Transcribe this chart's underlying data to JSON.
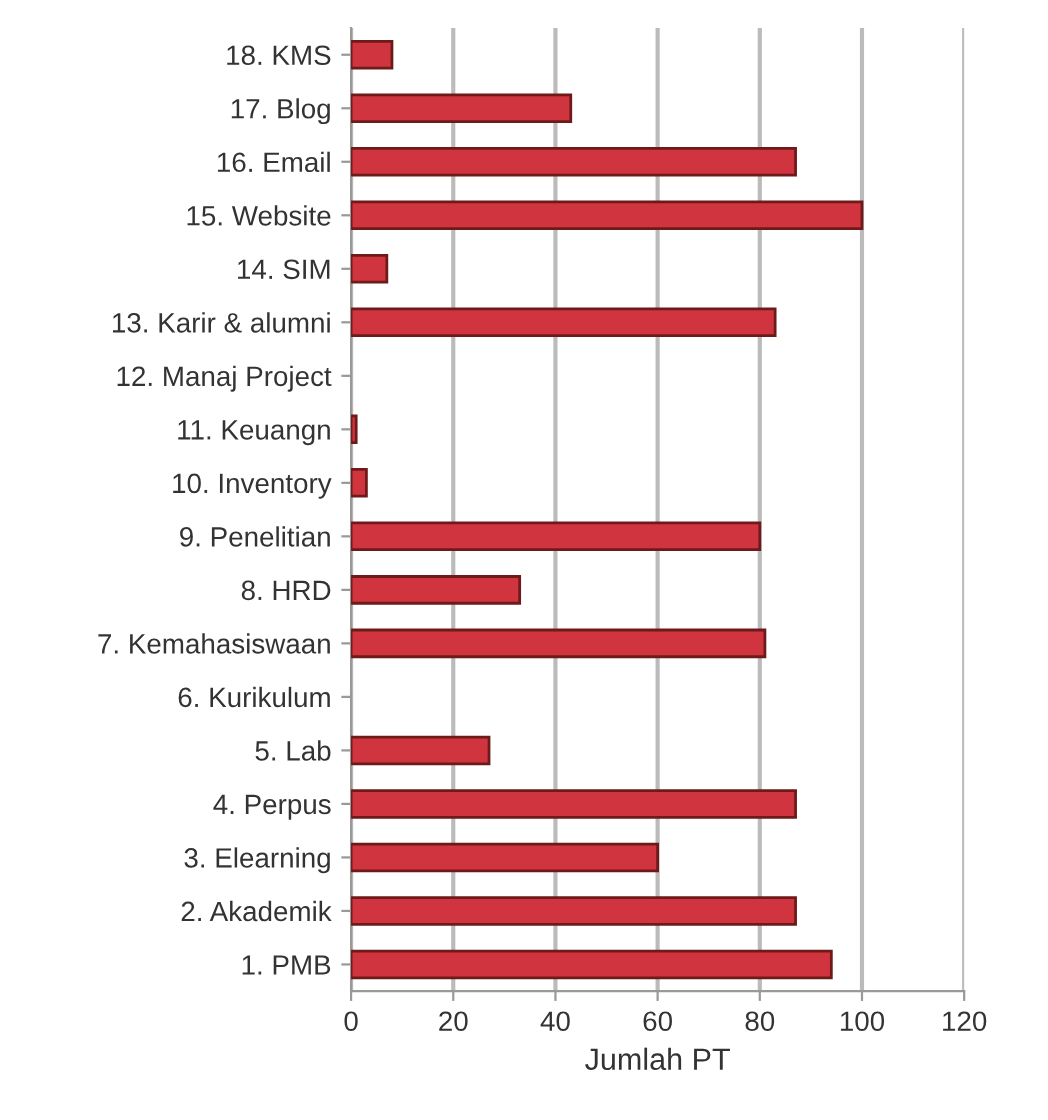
{
  "chart_data": {
    "type": "bar",
    "orientation": "horizontal",
    "xlabel": "Jumlah PT",
    "categories": [
      "18. KMS",
      "17. Blog",
      "16. Email",
      "15. Website",
      "14. SIM",
      "13. Karir & alumni",
      "12. Manaj Project",
      "11. Keuangn",
      "10. Inventory",
      "9. Penelitian",
      "8. HRD",
      "7. Kemahasiswaan",
      "6. Kurikulum",
      "5. Lab",
      "4. Perpus",
      "3. Elearning",
      "2. Akademik",
      "1. PMB"
    ],
    "values": [
      8,
      43,
      87,
      100,
      7,
      83,
      0,
      1,
      3,
      80,
      33,
      81,
      0,
      27,
      87,
      60,
      87,
      94
    ],
    "color": "#d0343f",
    "xlim": [
      0,
      120
    ],
    "xticks": [
      0,
      20,
      40,
      60,
      80,
      100,
      120
    ],
    "grid": "x"
  }
}
